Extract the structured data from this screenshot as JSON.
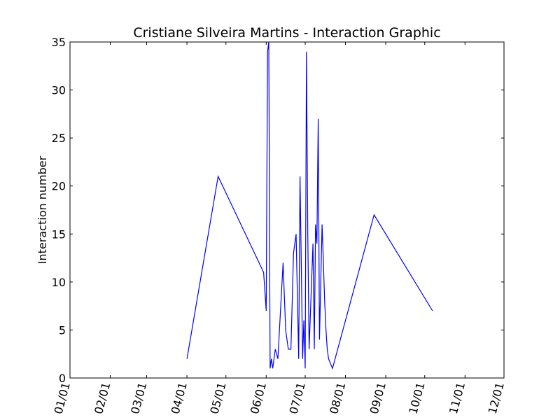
{
  "chart_data": {
    "type": "line",
    "title": "Cristiane Silveira Martins - Interaction Graphic",
    "xlabel": "",
    "ylabel": "Interaction number",
    "x_tick_labels": [
      "01/01",
      "02/01",
      "03/01",
      "04/01",
      "05/01",
      "06/01",
      "07/01",
      "08/01",
      "09/01",
      "10/01",
      "11/01",
      "12/01"
    ],
    "x_ticks": [
      "01-01",
      "02-01",
      "03-01",
      "04-01",
      "05-01",
      "06-01",
      "07-01",
      "08-01",
      "09-01",
      "10-01",
      "11-01",
      "12-01"
    ],
    "y_ticks": [
      0,
      5,
      10,
      15,
      20,
      25,
      30,
      35
    ],
    "ylim": [
      0,
      35
    ],
    "grid": false,
    "line_color": "#0000ff",
    "series": [
      {
        "x": [
          "04-01",
          "04-25",
          "05-30",
          "06-01",
          "06-02",
          "06-03",
          "06-04",
          "06-05",
          "06-06",
          "06-08",
          "06-10",
          "06-14",
          "06-16",
          "06-18",
          "06-20",
          "06-22",
          "06-24",
          "06-26",
          "06-27",
          "06-28",
          "06-29",
          "06-30",
          "07-01",
          "07-02",
          "07-03",
          "07-04",
          "07-07",
          "07-08",
          "07-09",
          "07-10",
          "07-11",
          "07-12",
          "07-14",
          "07-15",
          "07-16",
          "07-17",
          "07-18",
          "07-19",
          "07-22",
          "08-23",
          "10-07"
        ],
        "values": [
          2,
          21,
          11,
          7,
          34,
          35,
          1,
          2,
          1,
          3,
          2,
          12,
          5,
          3,
          3,
          13,
          15,
          2,
          21,
          12,
          2,
          6,
          1,
          34,
          15,
          3,
          14,
          3,
          16,
          14,
          27,
          4,
          16,
          12,
          8,
          5,
          3,
          2,
          1,
          17,
          7
        ]
      }
    ]
  }
}
